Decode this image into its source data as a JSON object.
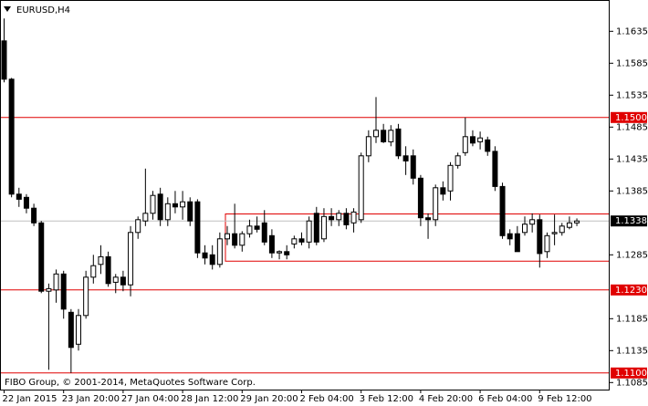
{
  "chart_data": {
    "type": "candlestick",
    "title": "EURUSD,H4",
    "footer": "FIBO Group, © 2001-2014, MetaQuotes Software Corp.",
    "categories": [
      "22 Jan 2015",
      null,
      null,
      null,
      null,
      null,
      null,
      null,
      "23 Jan 20:00",
      null,
      null,
      null,
      null,
      null,
      null,
      null,
      "27 Jan 04:00",
      null,
      null,
      null,
      null,
      null,
      null,
      null,
      "28 Jan 12:00",
      null,
      null,
      null,
      null,
      null,
      null,
      null,
      "29 Jan 20:00",
      null,
      null,
      null,
      null,
      null,
      null,
      null,
      "2 Feb 04:00",
      null,
      null,
      null,
      null,
      null,
      null,
      null,
      "3 Feb 12:00",
      null,
      null,
      null,
      null,
      null,
      null,
      null,
      "4 Feb 20:00",
      null,
      null,
      null,
      null,
      null,
      null,
      null,
      "6 Feb 04:00",
      null,
      null,
      null,
      null,
      null,
      null,
      null,
      "9 Feb 12:00",
      null,
      null,
      null,
      null,
      null
    ],
    "open": [
      1.162,
      1.156,
      1.138,
      1.1375,
      1.1358,
      1.1335,
      1.1228,
      1.123,
      1.1255,
      1.1195,
      1.1145,
      1.119,
      1.125,
      1.127,
      1.1282,
      1.1242,
      1.125,
      1.1238,
      1.132,
      1.1338,
      1.135,
      1.138,
      1.134,
      1.1365,
      1.136,
      1.1368,
      1.1368,
      1.1288,
      1.1285,
      1.127,
      1.131,
      1.1318,
      1.13,
      1.1318,
      1.133,
      1.1335,
      1.1315,
      1.1288,
      1.129,
      1.1302,
      1.131,
      1.1305,
      1.135,
      1.131,
      1.1345,
      1.134,
      1.135,
      1.1335,
      1.134,
      1.144,
      1.147,
      1.148,
      1.1462,
      1.1482,
      1.144,
      1.144,
      1.1405,
      1.1343,
      1.134,
      1.139,
      1.1385,
      1.1425,
      1.1445,
      1.147,
      1.1462,
      1.1465,
      1.1447,
      1.1392,
      1.1318,
      1.1318,
      1.132,
      1.1333,
      1.134,
      1.129,
      1.1318,
      1.132,
      1.1328,
      1.1335
    ],
    "high": [
      1.1655,
      1.1562,
      1.139,
      1.138,
      1.1365,
      1.1338,
      1.124,
      1.1262,
      1.126,
      1.12,
      1.12,
      1.126,
      1.1285,
      1.13,
      1.129,
      1.1255,
      1.126,
      1.133,
      1.1345,
      1.142,
      1.1385,
      1.139,
      1.1375,
      1.1385,
      1.1385,
      1.1375,
      1.1372,
      1.13,
      1.13,
      1.132,
      1.133,
      1.1365,
      1.1322,
      1.134,
      1.1345,
      1.1355,
      1.1325,
      1.1292,
      1.13,
      1.1315,
      1.132,
      1.1345,
      1.136,
      1.1358,
      1.1358,
      1.1355,
      1.1358,
      1.1358,
      1.1445,
      1.148,
      1.1532,
      1.149,
      1.1488,
      1.149,
      1.1455,
      1.145,
      1.141,
      1.135,
      1.1395,
      1.14,
      1.143,
      1.1445,
      1.15,
      1.148,
      1.1478,
      1.147,
      1.1455,
      1.1398,
      1.1325,
      1.133,
      1.1345,
      1.135,
      1.1348,
      1.132,
      1.1348,
      1.1335,
      1.1345,
      1.1342
    ],
    "low": [
      1.1555,
      1.1375,
      1.136,
      1.135,
      1.133,
      1.1225,
      1.1105,
      1.121,
      1.1185,
      1.11,
      1.1135,
      1.1185,
      1.124,
      1.1255,
      1.1235,
      1.1225,
      1.1228,
      1.122,
      1.131,
      1.133,
      1.134,
      1.133,
      1.133,
      1.135,
      1.134,
      1.133,
      1.128,
      1.127,
      1.1262,
      1.1265,
      1.13,
      1.1295,
      1.129,
      1.1312,
      1.132,
      1.13,
      1.128,
      1.1278,
      1.1278,
      1.1295,
      1.13,
      1.1295,
      1.13,
      1.1305,
      1.133,
      1.133,
      1.1325,
      1.132,
      1.1335,
      1.143,
      1.146,
      1.146,
      1.1455,
      1.1435,
      1.141,
      1.1395,
      1.133,
      1.131,
      1.133,
      1.137,
      1.137,
      1.142,
      1.144,
      1.1455,
      1.145,
      1.144,
      1.1385,
      1.131,
      1.13,
      1.129,
      1.1315,
      1.132,
      1.1265,
      1.128,
      1.13,
      1.1315,
      1.1325,
      1.133
    ],
    "close": [
      1.156,
      1.138,
      1.1372,
      1.1358,
      1.1335,
      1.1228,
      1.1232,
      1.1255,
      1.12,
      1.114,
      1.119,
      1.125,
      1.1268,
      1.1282,
      1.124,
      1.125,
      1.1238,
      1.132,
      1.134,
      1.135,
      1.1378,
      1.134,
      1.1365,
      1.136,
      1.1368,
      1.1338,
      1.1288,
      1.128,
      1.127,
      1.131,
      1.1318,
      1.13,
      1.1318,
      1.133,
      1.1325,
      1.1305,
      1.1288,
      1.129,
      1.1285,
      1.131,
      1.1305,
      1.1338,
      1.1305,
      1.1345,
      1.134,
      1.135,
      1.1332,
      1.1352,
      1.144,
      1.147,
      1.148,
      1.1462,
      1.148,
      1.144,
      1.1432,
      1.1405,
      1.1343,
      1.134,
      1.139,
      1.138,
      1.1425,
      1.144,
      1.147,
      1.146,
      1.1468,
      1.1447,
      1.1392,
      1.1315,
      1.131,
      1.129,
      1.1333,
      1.134,
      1.1287,
      1.1315,
      1.132,
      1.133,
      1.1335,
      1.1338
    ],
    "ylim": [
      1.1074,
      1.1684
    ],
    "yticks": [
      1.1085,
      1.1135,
      1.1185,
      1.1285,
      1.1385,
      1.1435,
      1.1485,
      1.1535,
      1.1585,
      1.1635
    ],
    "levels": [
      {
        "value": 1.15,
        "label": "1.1500"
      },
      {
        "value": 1.123,
        "label": "1.1230"
      },
      {
        "value": 1.11,
        "label": "1.1100"
      }
    ],
    "level_color": "#e00000",
    "zone": [
      1.1275,
      1.1349
    ],
    "last_price": 1.1338
  }
}
